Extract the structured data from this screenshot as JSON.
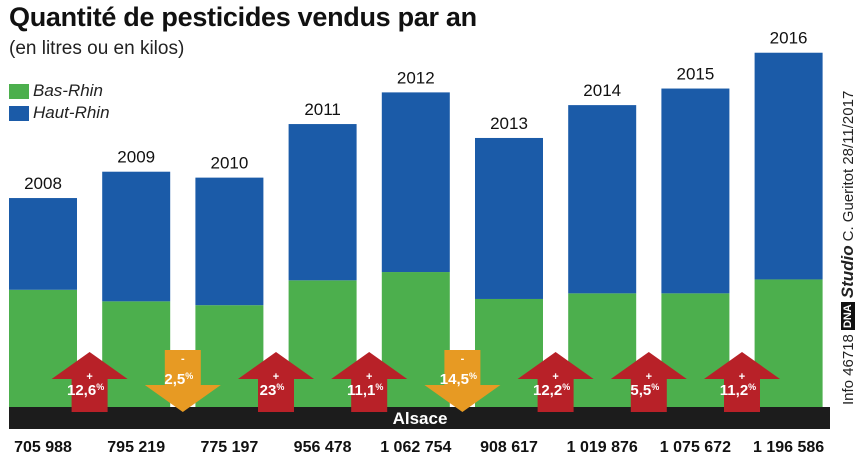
{
  "colors": {
    "bas_rhin": "#4caf4d",
    "haut_rhin": "#1b5ba8",
    "increase_arrow": "#b82128",
    "decrease_arrow": "#e79a23",
    "band": "#1c1c1c"
  },
  "chart_data": {
    "type": "bar",
    "stacked": true,
    "title": "Quantité de pesticides vendus par an",
    "subtitle": "(en litres ou en kilos)",
    "band_label": "Alsace",
    "categories": [
      "2008",
      "2009",
      "2010",
      "2011",
      "2012",
      "2013",
      "2014",
      "2015",
      "2016"
    ],
    "series": [
      {
        "name": "Bas-Rhin",
        "values": [
          396000,
          357000,
          344000,
          428000,
          456000,
          365000,
          384000,
          384000,
          431000
        ]
      },
      {
        "name": "Haut-Rhin",
        "values": [
          310000,
          438000,
          431000,
          528000,
          607000,
          544000,
          636000,
          692000,
          766000
        ]
      }
    ],
    "totals": [
      "705 988",
      "795 219",
      "775 197",
      "956 478",
      "1 062 754",
      "908 617",
      "1 019 876",
      "1 075 672",
      "1 196 586"
    ],
    "changes": [
      {
        "sign": "+",
        "value": "12,6",
        "unit": "%",
        "direction": "up"
      },
      {
        "sign": "-",
        "value": "2,5",
        "unit": "%",
        "direction": "down"
      },
      {
        "sign": "+",
        "value": "23",
        "unit": "%",
        "direction": "up"
      },
      {
        "sign": "+",
        "value": "11,1",
        "unit": "%",
        "direction": "up"
      },
      {
        "sign": "-",
        "value": "14,5",
        "unit": "%",
        "direction": "down"
      },
      {
        "sign": "+",
        "value": "12,2",
        "unit": "%",
        "direction": "up"
      },
      {
        "sign": "+",
        "value": "5,5",
        "unit": "%",
        "direction": "up"
      },
      {
        "sign": "+",
        "value": "11,2",
        "unit": "%",
        "direction": "up"
      }
    ],
    "ylim": [
      0,
      1240000
    ],
    "legend_position": "top-left",
    "grid": false
  },
  "credit": {
    "info": "Info 46718",
    "brand": "DNA",
    "studio": "Studio",
    "author": "C. Gueritot 28/11/2017"
  }
}
